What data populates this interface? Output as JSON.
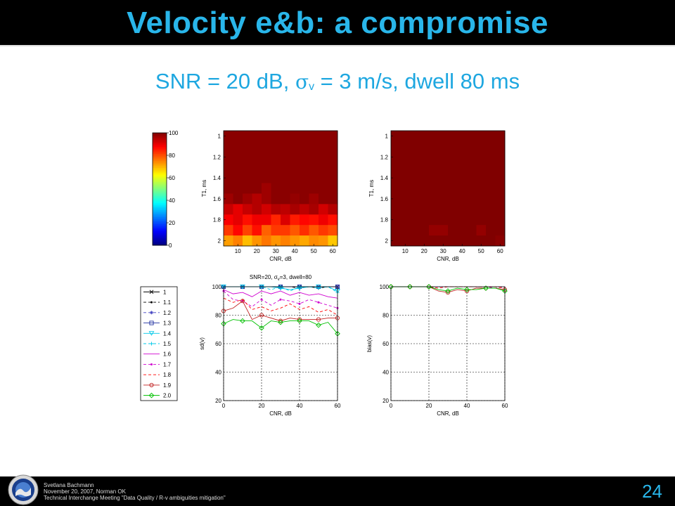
{
  "slide": {
    "title": "Velocity e&b: a compromise",
    "subtitle_pre": "SNR = 20 dB, ",
    "subtitle_sym": "σ",
    "subtitle_sub": "v",
    "subtitle_post": " = 3 m/s, dwell 80 ms",
    "footer_line1": "Svetlana Bachmann",
    "footer_line2": "November 20, 2007, Norman OK",
    "footer_line3": "Technical Interchange Meeting \"Data Quality / R-v ambiguities mitigation\"",
    "page_number": "24"
  },
  "chart_data": [
    {
      "type": "heatmap",
      "name": "left-heatmap",
      "xlabel": "CNR, dB",
      "ylabel": "T1, ms",
      "xticks": [
        "10",
        "20",
        "30",
        "40",
        "50",
        "60"
      ],
      "yticks": [
        "1",
        "1.2",
        "1.4",
        "1.6",
        "1.8",
        "2"
      ],
      "x": [
        5,
        10,
        15,
        20,
        25,
        30,
        35,
        40,
        45,
        50,
        55,
        60
      ],
      "y": [
        1.0,
        1.1,
        1.2,
        1.3,
        1.4,
        1.5,
        1.6,
        1.7,
        1.8,
        1.9,
        2.0
      ],
      "values": [
        [
          99,
          99,
          99,
          99,
          99,
          99,
          99,
          99,
          99,
          99,
          99,
          99
        ],
        [
          99,
          99,
          99,
          99,
          99,
          99,
          99,
          99,
          99,
          99,
          99,
          99
        ],
        [
          99,
          99,
          99,
          99,
          99,
          99,
          99,
          99,
          99,
          99,
          99,
          99
        ],
        [
          99,
          99,
          99,
          99,
          99,
          99,
          99,
          99,
          99,
          99,
          99,
          99
        ],
        [
          99,
          99,
          99,
          99,
          99,
          99,
          99,
          99,
          99,
          99,
          99,
          99
        ],
        [
          99,
          99,
          99,
          99,
          97,
          99,
          99,
          99,
          99,
          99,
          99,
          99
        ],
        [
          97,
          99,
          97,
          95,
          97,
          99,
          99,
          98,
          99,
          97,
          99,
          99
        ],
        [
          93,
          90,
          93,
          95,
          92,
          95,
          94,
          96,
          94,
          96,
          92,
          95
        ],
        [
          88,
          90,
          86,
          89,
          89,
          84,
          91,
          85,
          87,
          86,
          89,
          86
        ],
        [
          82,
          87,
          81,
          86,
          78,
          82,
          82,
          79,
          83,
          79,
          82,
          80
        ],
        [
          72,
          75,
          69,
          73,
          76,
          73,
          75,
          73,
          71,
          74,
          73,
          68
        ]
      ],
      "colorbar": {
        "ticks": [
          "0",
          "20",
          "40",
          "60",
          "80",
          "100"
        ],
        "range": [
          0,
          100
        ]
      }
    },
    {
      "type": "heatmap",
      "name": "right-heatmap",
      "xlabel": "CNR, dB",
      "ylabel": "T1, ms",
      "xticks": [
        "10",
        "20",
        "30",
        "40",
        "50",
        "60"
      ],
      "yticks": [
        "1",
        "1.2",
        "1.4",
        "1.6",
        "1.8",
        "2"
      ],
      "x": [
        5,
        10,
        15,
        20,
        25,
        30,
        35,
        40,
        45,
        50,
        55,
        60
      ],
      "y": [
        1.0,
        1.1,
        1.2,
        1.3,
        1.4,
        1.5,
        1.6,
        1.7,
        1.8,
        1.9,
        2.0
      ],
      "values": [
        [
          100,
          100,
          100,
          100,
          100,
          100,
          100,
          100,
          100,
          100,
          100,
          100
        ],
        [
          100,
          100,
          100,
          100,
          100,
          100,
          100,
          100,
          100,
          100,
          100,
          100
        ],
        [
          100,
          100,
          100,
          100,
          100,
          100,
          100,
          100,
          100,
          100,
          100,
          100
        ],
        [
          100,
          100,
          100,
          100,
          100,
          100,
          100,
          100,
          100,
          100,
          100,
          100
        ],
        [
          100,
          100,
          100,
          100,
          100,
          100,
          100,
          100,
          100,
          100,
          100,
          100
        ],
        [
          100,
          100,
          100,
          100,
          100,
          100,
          100,
          100,
          100,
          100,
          100,
          100
        ],
        [
          100,
          100,
          100,
          100,
          100,
          100,
          100,
          100,
          100,
          100,
          100,
          100
        ],
        [
          100,
          100,
          100,
          100,
          100,
          100,
          100,
          100,
          100,
          100,
          100,
          100
        ],
        [
          100,
          100,
          100,
          100,
          100,
          100,
          100,
          100,
          100,
          100,
          100,
          100
        ],
        [
          100,
          100,
          100,
          100,
          98,
          98,
          100,
          100,
          100,
          98,
          100,
          100
        ],
        [
          100,
          100,
          100,
          100,
          100,
          100,
          100,
          100,
          100,
          100,
          100,
          99
        ]
      ]
    },
    {
      "type": "line",
      "name": "sd-line-chart",
      "title": "SNR=20, σ_v=3, dwell=80",
      "title_parts": [
        "SNR=20, σ",
        "v",
        "=3, dwell=80"
      ],
      "xlabel": "CNR, dB",
      "ylabel": "sd(v)",
      "xlim": [
        0,
        60
      ],
      "ylim": [
        20,
        100
      ],
      "xticks": [
        "0",
        "20",
        "40",
        "60"
      ],
      "yticks": [
        "20",
        "40",
        "60",
        "80",
        "100"
      ],
      "grid": true,
      "x": [
        0,
        5,
        10,
        15,
        20,
        25,
        30,
        35,
        40,
        45,
        50,
        55,
        60
      ],
      "series": [
        {
          "name": "1",
          "color": "#000000",
          "dash": "",
          "marker": "x",
          "values": [
            100,
            100,
            100,
            100,
            100,
            100,
            100,
            100,
            100,
            100,
            100,
            100,
            100
          ]
        },
        {
          "name": "1.1",
          "color": "#000000",
          "dash": "4,3",
          "marker": "dot",
          "values": [
            100,
            100,
            100,
            100,
            100,
            100,
            100,
            100,
            99,
            100,
            99,
            100,
            100
          ]
        },
        {
          "name": "1.2",
          "color": "#4040c0",
          "dash": "4,3",
          "marker": "star",
          "values": [
            100,
            100,
            100,
            100,
            100,
            100,
            100,
            100,
            100,
            100,
            100,
            100,
            100
          ]
        },
        {
          "name": "1.3",
          "color": "#2030a0",
          "dash": "",
          "marker": "square",
          "values": [
            100,
            100,
            100,
            100,
            100,
            100,
            100,
            100,
            100,
            100,
            100,
            100,
            100
          ]
        },
        {
          "name": "1.4",
          "color": "#00c8e8",
          "dash": "",
          "marker": "triangle-down",
          "values": [
            100,
            100,
            100,
            100,
            100,
            100,
            99,
            98,
            99,
            100,
            100,
            100,
            97
          ]
        },
        {
          "name": "1.5",
          "color": "#00c8e8",
          "dash": "4,3",
          "marker": "plus",
          "values": [
            100,
            100,
            100,
            100,
            100,
            98,
            100,
            97,
            100,
            100,
            99,
            100,
            96
          ]
        },
        {
          "name": "1.6",
          "color": "#d000d0",
          "dash": "",
          "marker": "",
          "values": [
            98,
            95,
            96,
            93,
            97,
            95,
            97,
            94,
            96,
            94,
            95,
            93,
            92
          ]
        },
        {
          "name": "1.7",
          "color": "#d000d0",
          "dash": "4,3",
          "marker": "dot",
          "values": [
            97,
            91,
            90,
            86,
            91,
            87,
            91,
            90,
            88,
            91,
            89,
            87,
            85
          ]
        },
        {
          "name": "1.8",
          "color": "#ff0000",
          "dash": "4,3",
          "marker": "",
          "values": [
            92,
            89,
            91,
            84,
            86,
            83,
            85,
            88,
            84,
            86,
            82,
            84,
            80
          ]
        },
        {
          "name": "1.9",
          "color": "#c02020",
          "dash": "",
          "marker": "circle",
          "values": [
            83,
            85,
            90,
            77,
            80,
            78,
            76,
            78,
            77,
            77,
            77,
            78,
            78
          ]
        },
        {
          "name": "2.0",
          "color": "#00c000",
          "dash": "",
          "marker": "diamond",
          "values": [
            74,
            77,
            76,
            76,
            71,
            76,
            75,
            76,
            76,
            76,
            73,
            75,
            67
          ]
        }
      ]
    },
    {
      "type": "line",
      "name": "bias-line-chart",
      "xlabel": "CNR, dB",
      "ylabel": "bias(v)",
      "xlim": [
        0,
        60
      ],
      "ylim": [
        20,
        100
      ],
      "xticks": [
        "0",
        "20",
        "40",
        "60"
      ],
      "yticks": [
        "20",
        "40",
        "60",
        "80",
        "100"
      ],
      "grid": true,
      "x": [
        0,
        5,
        10,
        15,
        20,
        25,
        30,
        35,
        40,
        45,
        50,
        55,
        60
      ],
      "series": [
        {
          "name": "1.7",
          "color": "#d000d0",
          "dash": "4,3",
          "marker": "",
          "values": [
            100,
            100,
            100,
            100,
            100,
            100,
            100,
            100,
            100,
            100,
            100,
            99,
            100
          ]
        },
        {
          "name": "1.8",
          "color": "#ff0000",
          "dash": "4,3",
          "marker": "",
          "values": [
            100,
            100,
            100,
            100,
            100,
            99,
            100,
            100,
            100,
            100,
            100,
            100,
            99
          ]
        },
        {
          "name": "1.9",
          "color": "#c02020",
          "dash": "",
          "marker": "circle",
          "values": [
            100,
            100,
            100,
            100,
            100,
            97,
            96,
            98,
            97,
            99,
            99,
            99,
            98
          ]
        },
        {
          "name": "2.0",
          "color": "#00c000",
          "dash": "",
          "marker": "diamond",
          "values": [
            100,
            100,
            100,
            100,
            100,
            98,
            97,
            99,
            98,
            98,
            99,
            99,
            97
          ]
        }
      ]
    }
  ]
}
